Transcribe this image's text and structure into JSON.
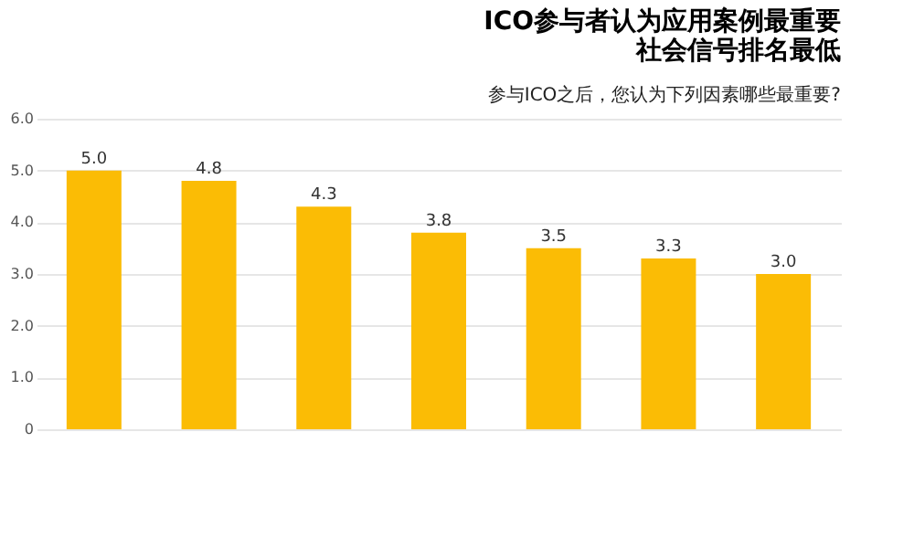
{
  "chart_data": {
    "type": "bar",
    "title": [
      "ICO参与者认为应用案例最重要",
      "社会信号排名最低"
    ],
    "subtitle": "参与ICO之后，您认为下列因素哪些最重要?",
    "categories": [
      null,
      null,
      null,
      null,
      null,
      null,
      null
    ],
    "values": [
      5.0,
      4.8,
      4.3,
      3.8,
      3.5,
      3.3,
      3.0
    ],
    "color": "#fbbc05",
    "ylim": [
      0,
      6
    ],
    "yticks": [
      {
        "value": 0,
        "label": "0"
      },
      {
        "value": 1,
        "label": "1.0"
      },
      {
        "value": 2,
        "label": "2.0"
      },
      {
        "value": 3,
        "label": "3.0"
      },
      {
        "value": 4,
        "label": "4.0"
      },
      {
        "value": 5,
        "label": "5.0"
      },
      {
        "value": 6,
        "label": "6.0"
      }
    ],
    "value_labels": [
      "5.0",
      "4.8",
      "4.3",
      "3.8",
      "3.5",
      "3.3",
      "3.0"
    ],
    "grid": "y"
  }
}
